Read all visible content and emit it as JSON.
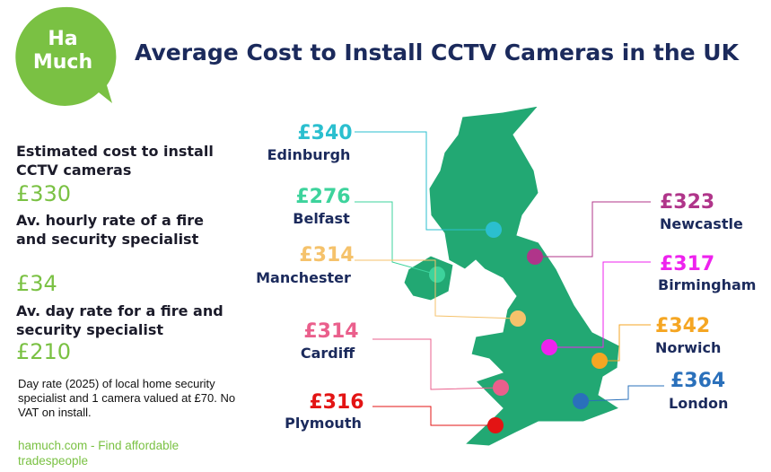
{
  "header": {
    "logo": [
      "Ha",
      "Much"
    ],
    "title": "Average Cost to Install CCTV Cameras in the UK"
  },
  "stats": [
    {
      "label": "Estimated cost to install CCTV cameras",
      "value": "£330"
    },
    {
      "label": "Av. hourly rate of a fire and security specialist",
      "value": "£34"
    },
    {
      "label": "Av. day rate for a fire and security specialist",
      "value": "£210"
    }
  ],
  "note": "Day rate (2025) of local home security specialist  and 1 camera valued at  £70. No VAT on install.",
  "footer": "hamuch.com - Find affordable tradespeople",
  "cities": [
    {
      "price": "£340",
      "name": "Edinburgh",
      "color": "#2bbfcf"
    },
    {
      "price": "£276",
      "name": "Belfast",
      "color": "#3dd39c"
    },
    {
      "price": "£314",
      "name": "Manchester",
      "color": "#f5c26b"
    },
    {
      "price": "£314",
      "name": "Cardiff",
      "color": "#ea5f8c"
    },
    {
      "price": "£316",
      "name": "Plymouth",
      "color": "#e31414"
    },
    {
      "price": "£323",
      "name": "Newcastle",
      "color": "#b0358a"
    },
    {
      "price": "£317",
      "name": "Birmingham",
      "color": "#ee22ee"
    },
    {
      "price": "£342",
      "name": "Norwich",
      "color": "#f5a623"
    },
    {
      "price": "£364",
      "name": "London",
      "color": "#2a70bb"
    }
  ]
}
